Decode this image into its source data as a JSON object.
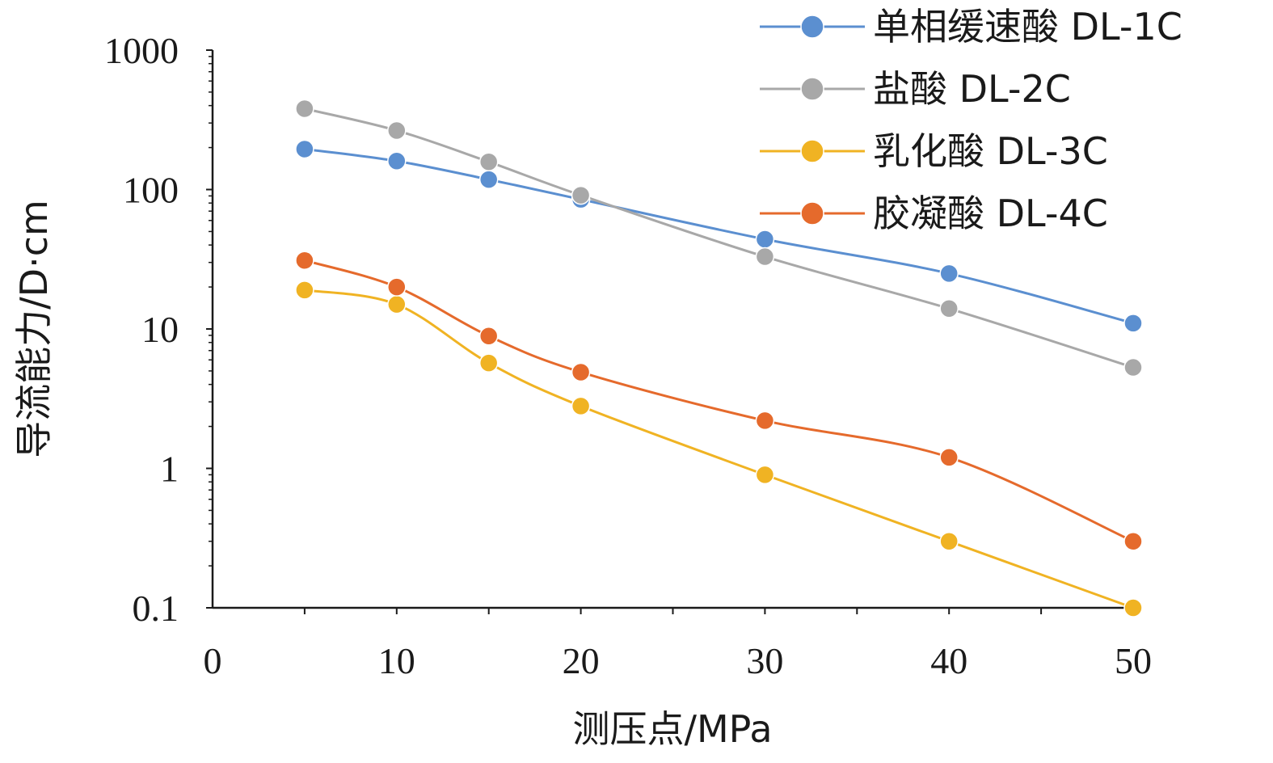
{
  "chart_data": {
    "type": "line",
    "xlabel": "测压点/MPa",
    "ylabel": "导流能力/D·cm",
    "xlim": [
      0,
      50
    ],
    "ylim": [
      0.1,
      1000
    ],
    "yscale": "log",
    "x_ticks": [
      "0",
      "10",
      "20",
      "30",
      "40",
      "50"
    ],
    "y_ticks": [
      "0.1",
      "1",
      "10",
      "100",
      "1000"
    ],
    "legend_position": "top-right",
    "grid": false,
    "x": [
      5,
      10,
      15,
      20,
      30,
      40,
      50
    ],
    "series": [
      {
        "name": "单相缓速酸 DL-1C",
        "color": "#5b8fd0",
        "values": [
          195,
          160,
          118,
          85,
          44,
          25,
          11
        ]
      },
      {
        "name": "盐酸 DL-2C",
        "color": "#a8a8a8",
        "values": [
          380,
          265,
          158,
          91,
          33,
          14,
          5.3
        ]
      },
      {
        "name": "乳化酸 DL-3C",
        "color": "#f0b323",
        "values": [
          19,
          15,
          5.7,
          2.8,
          0.9,
          0.3,
          0.1
        ]
      },
      {
        "name": "胶凝酸 DL-4C",
        "color": "#e56a2c",
        "values": [
          31,
          20,
          8.9,
          4.9,
          2.2,
          1.2,
          0.3
        ]
      }
    ]
  }
}
